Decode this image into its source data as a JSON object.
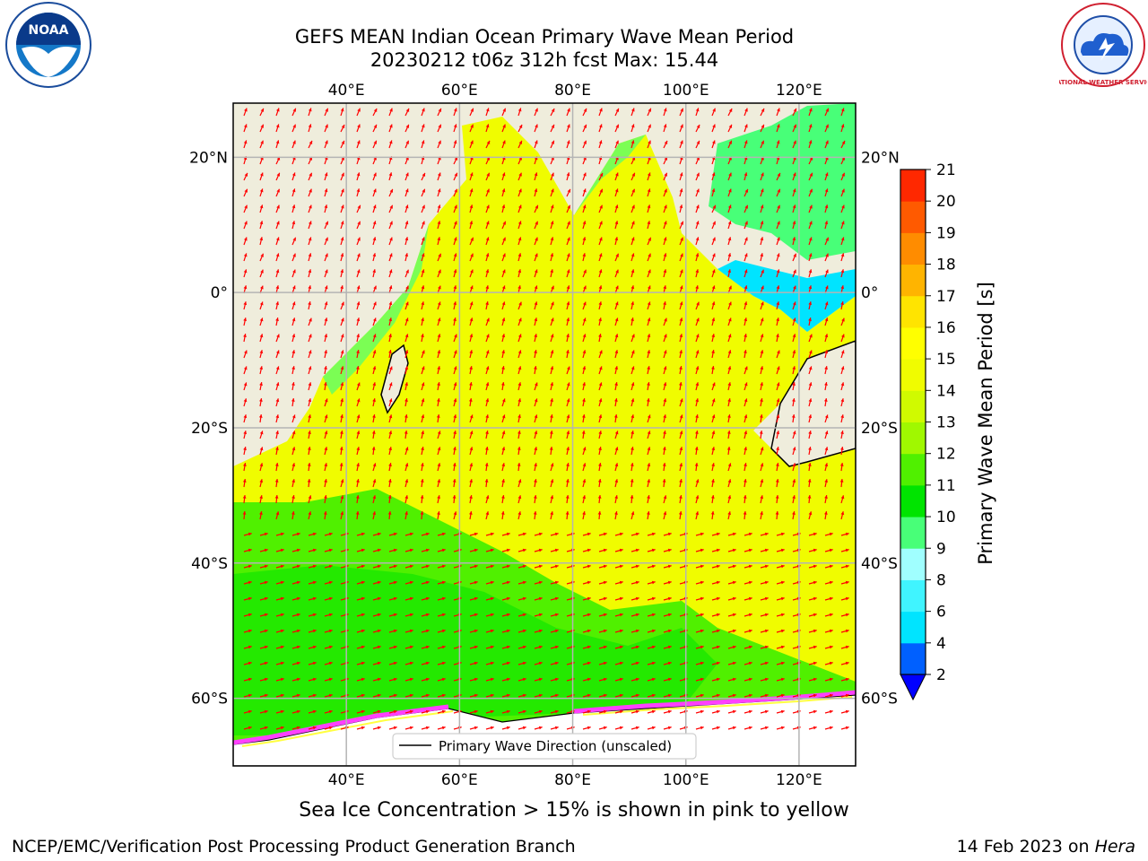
{
  "title": {
    "line1": "GEFS MEAN Indian Ocean Primary Wave Mean Period",
    "line2": "20230212 t06z 312h fcst   Max: 15.44"
  },
  "axes": {
    "lon_ticks": [
      "40°E",
      "60°E",
      "80°E",
      "100°E",
      "120°E"
    ],
    "lat_ticks": [
      "20°N",
      "0°",
      "20°S",
      "40°S",
      "60°S"
    ],
    "lon_values": [
      40,
      60,
      80,
      100,
      120
    ],
    "lat_values": [
      20,
      0,
      -20,
      -40,
      -60
    ],
    "extent": {
      "lon": [
        20,
        130
      ],
      "lat": [
        -70,
        28
      ]
    },
    "grid": true
  },
  "legend": {
    "label": "Primary Wave Direction (unscaled)",
    "placement": "bottom-center"
  },
  "colorbar": {
    "label": "Primary Wave Mean Period [s]",
    "ticks": [
      "2",
      "4",
      "6",
      "8",
      "9",
      "10",
      "11",
      "12",
      "13",
      "14",
      "15",
      "16",
      "17",
      "18",
      "19",
      "20",
      "21"
    ],
    "colors": [
      "#0060ff",
      "#00e4ff",
      "#40f4ff",
      "#a0ffff",
      "#48ff78",
      "#00e400",
      "#50f000",
      "#a0f800",
      "#d0fa00",
      "#f0fc00",
      "#ffff00",
      "#ffe400",
      "#ffb400",
      "#ff8c00",
      "#ff5a00",
      "#ff2800"
    ],
    "under_color": "#0000ff"
  },
  "footer": {
    "ice_note": "Sea Ice Concentration > 15% is shown in pink to yellow",
    "credit": "NCEP/EMC/Verification Post Processing Product Generation Branch",
    "date_prefix": "14 Feb 2023 on ",
    "machine": "Hera"
  },
  "logos": {
    "left": "NOAA",
    "right": "NATIONAL WEATHER SERVICE"
  },
  "colors": {
    "land": "#efeddc",
    "arrow": "#ff0000",
    "grid": "#b4b4b4"
  }
}
